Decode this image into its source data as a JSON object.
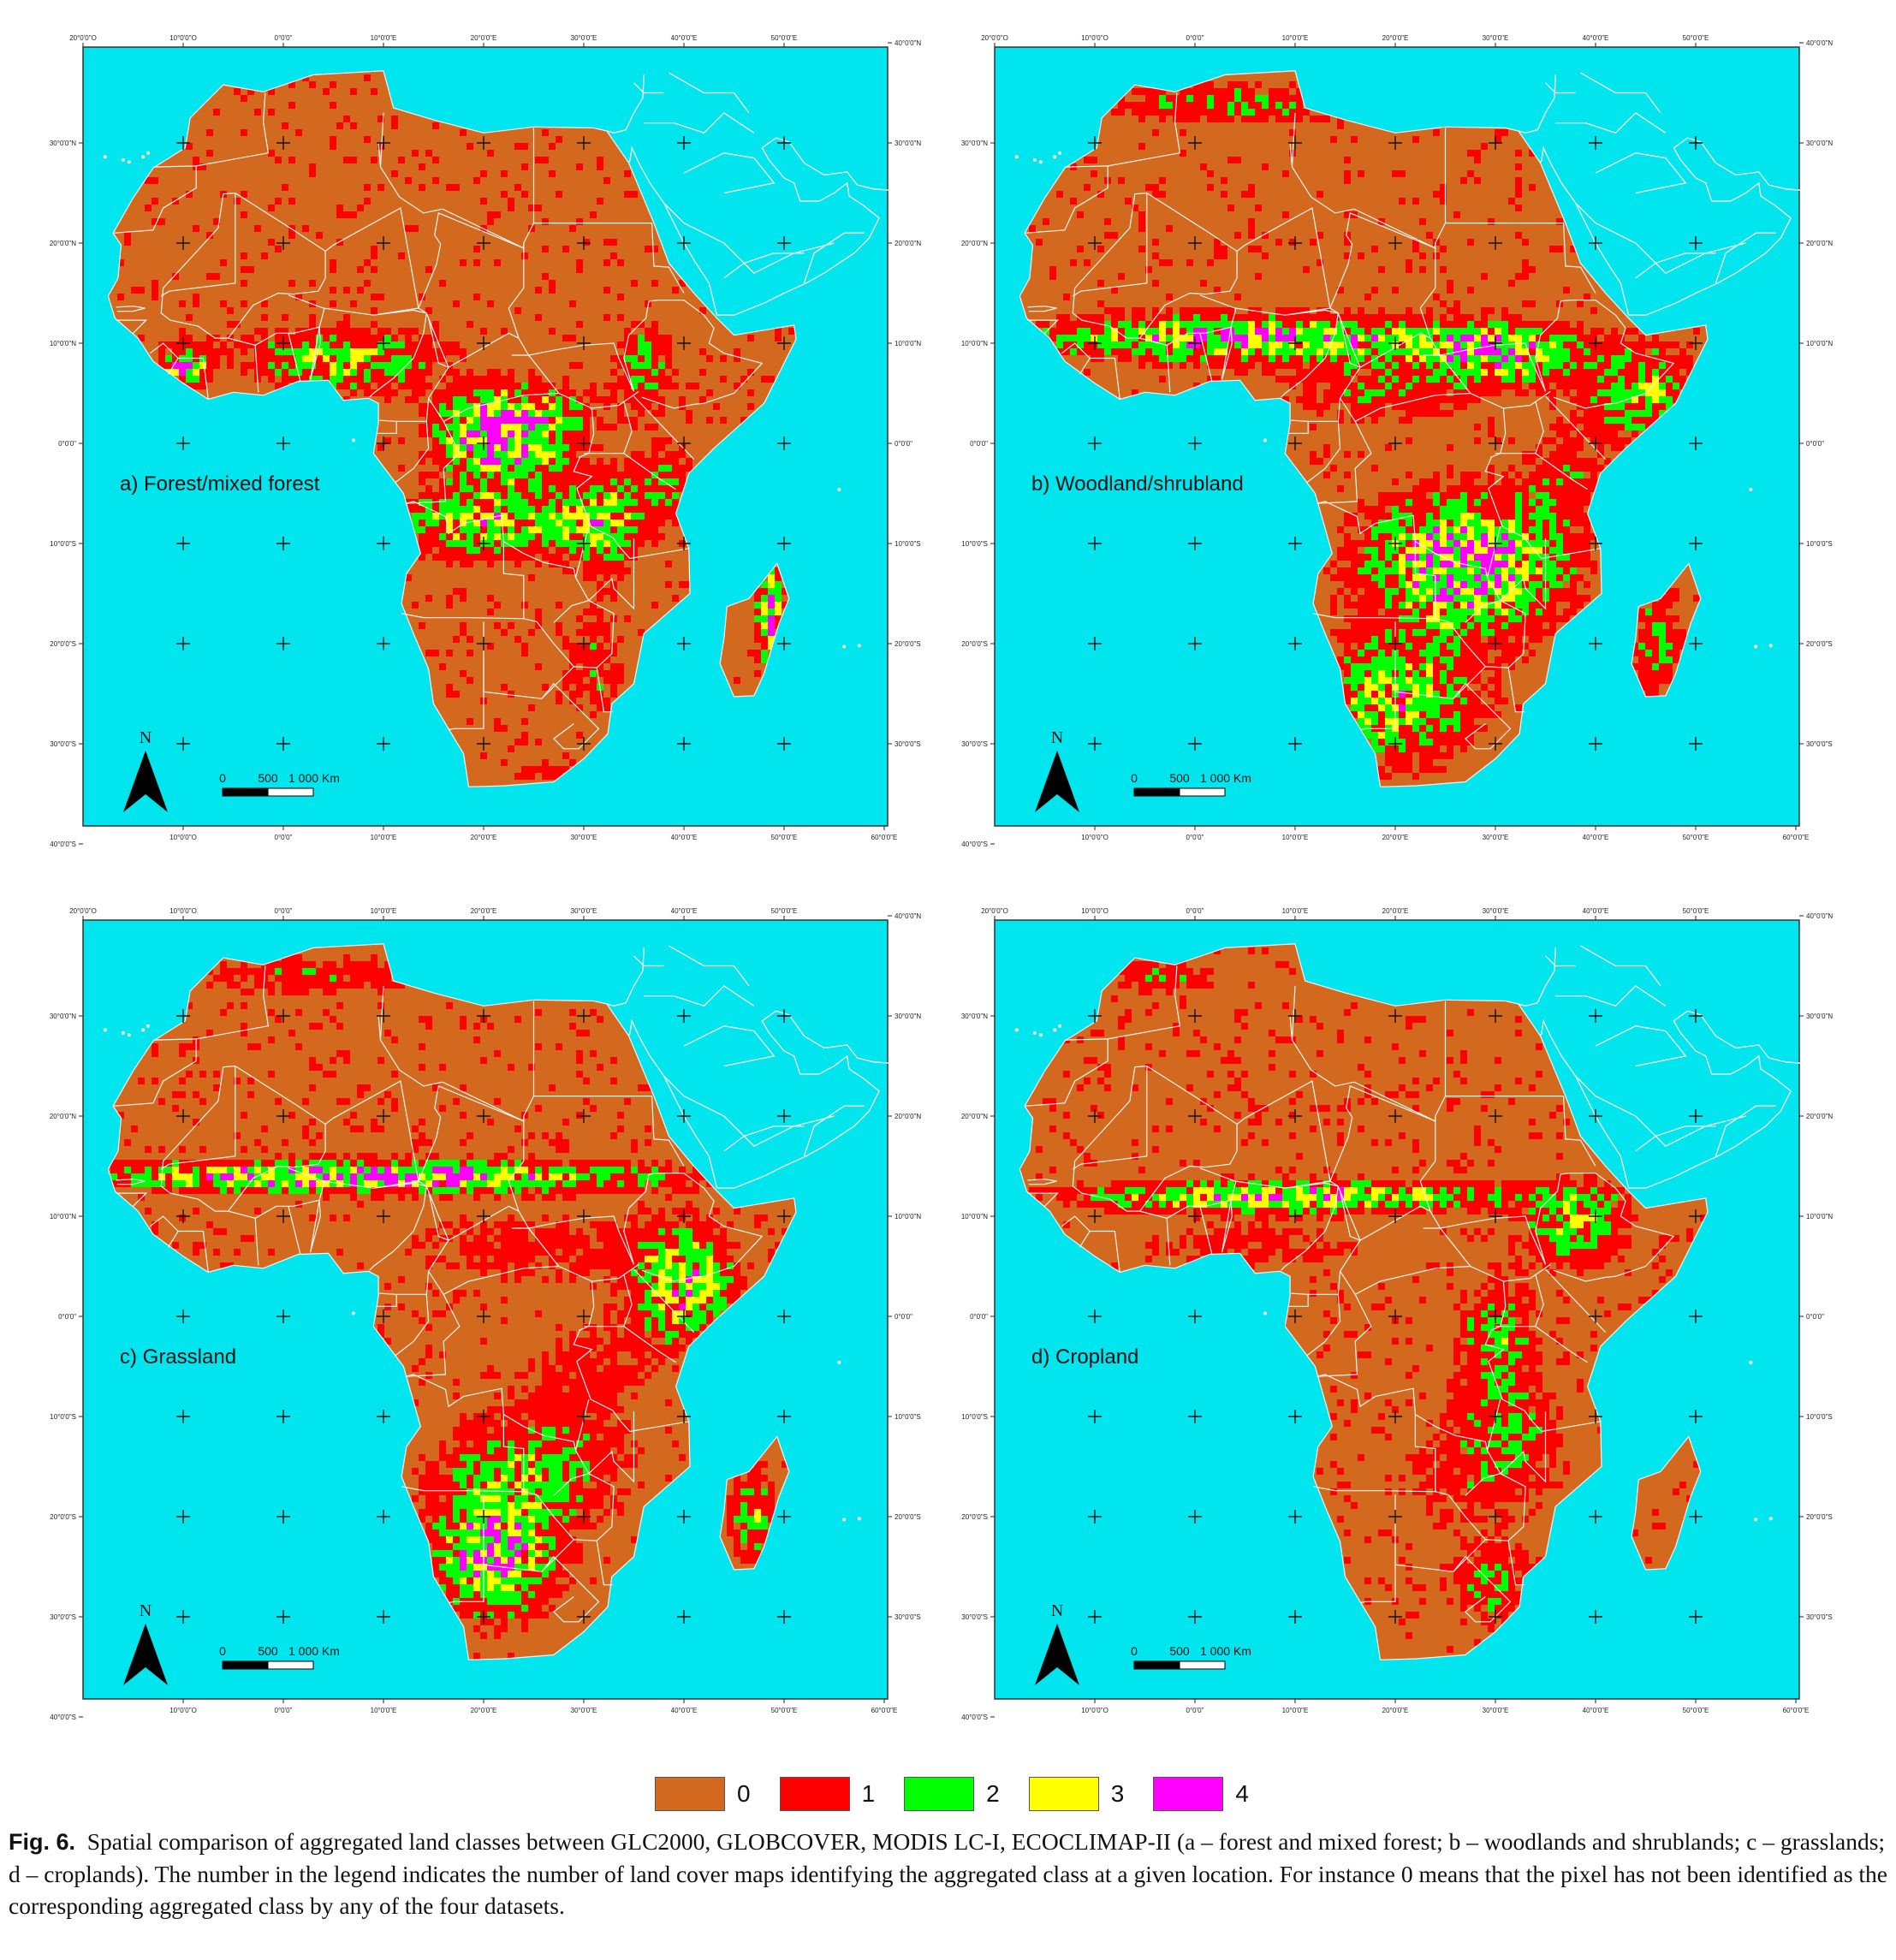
{
  "panels": [
    {
      "id": "a",
      "title": "a) Forest/mixed forest",
      "mode": "forest"
    },
    {
      "id": "b",
      "title": "b) Woodland/shrubland",
      "mode": "woodland"
    },
    {
      "id": "c",
      "title": "c) Grassland",
      "mode": "grass"
    },
    {
      "id": "d",
      "title": "d) Cropland",
      "mode": "crop"
    }
  ],
  "top_ticks": [
    "20°0'0\"O",
    "10°0'0\"O",
    "0°0'0\"",
    "10°0'0\"E",
    "20°0'0\"E",
    "30°0'0\"E",
    "40°0'0\"E",
    "50°0'0\"E"
  ],
  "bottom_ticks": [
    "10°0'0\"O",
    "0°0'0\"",
    "10°0'0\"E",
    "20°0'0\"E",
    "30°0'0\"E",
    "40°0'0\"E",
    "50°0'0\"E",
    "60°0'0\"E"
  ],
  "left_ticks": [
    "30°0'0\"N",
    "20°0'0\"N",
    "10°0'0\"N",
    "0°0'0\"",
    "10°0'0\"S",
    "20°0'0\"S",
    "30°0'0\"S",
    "40°0'0\"S"
  ],
  "right_ticks": [
    "40°0'0\"N",
    "30°0'0\"N",
    "20°0'0\"N",
    "10°0'0\"N",
    "0°0'0\"",
    "10°0'0\"S",
    "20°0'0\"S",
    "30°0'0\"S"
  ],
  "north_label": "N",
  "scale_labels": [
    "0",
    "500",
    "1 000 Km"
  ],
  "legend": {
    "items": [
      {
        "label": "0",
        "color": "#D2691E"
      },
      {
        "label": "1",
        "color": "#FF0000"
      },
      {
        "label": "2",
        "color": "#00FF00"
      },
      {
        "label": "3",
        "color": "#FFFF00"
      },
      {
        "label": "4",
        "color": "#FF00FF"
      }
    ]
  },
  "colors": {
    "ocean": "#00E5EE",
    "land": "#D2691E",
    "border": "#F5F5F5"
  },
  "caption": {
    "label": "Fig. 6.",
    "text": "Spatial comparison of aggregated land classes between GLC2000, GLOBCOVER, MODIS LC-I, ECOCLIMAP-II (a – forest and mixed forest; b – woodlands and shrublands; c – grasslands; d – croplands). The number in the legend indicates the number of land cover maps identifying the aggregated class at a given location. For instance 0 means that the pixel has not been identified as the corresponding aggregated class by any of the four datasets."
  }
}
